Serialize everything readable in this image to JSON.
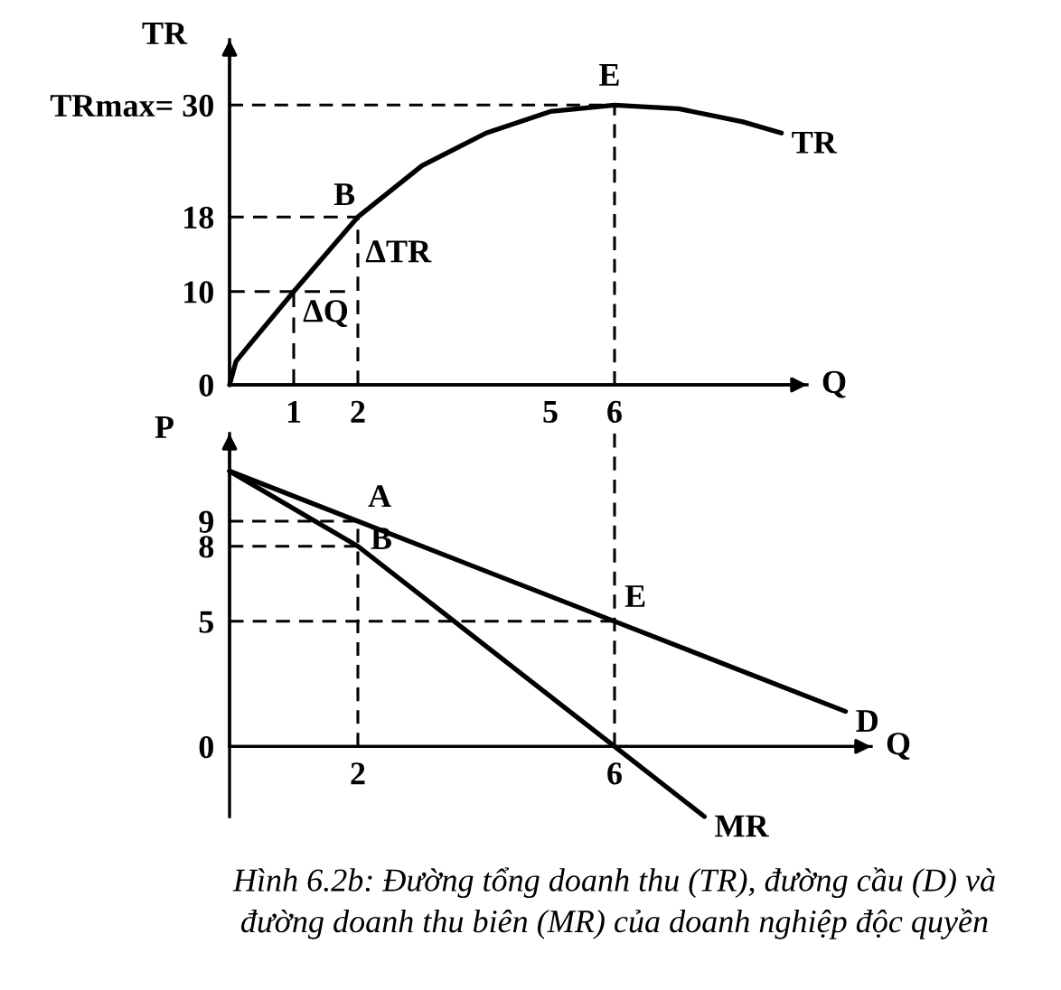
{
  "chart_data": [
    {
      "type": "line",
      "xlabel": "Q",
      "ylabel": "TR",
      "xlim": [
        0,
        9
      ],
      "ylim": [
        0,
        37
      ],
      "xticks": [
        1,
        2,
        5,
        6
      ],
      "yticks": [
        0,
        10,
        18,
        {
          "value": 30,
          "label": "TRmax= 30"
        }
      ],
      "series": [
        {
          "name": "TR",
          "color": "#000000",
          "x": [
            0,
            0.1,
            0.3,
            1,
            2,
            3,
            4,
            5,
            6,
            7,
            8,
            8.6
          ],
          "values": [
            0,
            2.5,
            4.2,
            10,
            18,
            23.5,
            27,
            29.3,
            30,
            29.6,
            28.2,
            27
          ]
        },
        {
          "color": "#000000",
          "line_style": "dashed",
          "x": [
            0,
            6,
            6
          ],
          "values": [
            30,
            30,
            0
          ]
        },
        {
          "color": "#000000",
          "line_style": "dashed",
          "x": [
            0,
            2,
            2
          ],
          "values": [
            18,
            18,
            0
          ]
        },
        {
          "color": "#000000",
          "line_style": "dashed",
          "x": [
            0,
            1.8
          ],
          "values": [
            10,
            10
          ]
        },
        {
          "color": "#000000",
          "line_style": "dashed",
          "x": [
            1,
            1
          ],
          "values": [
            10,
            0
          ]
        }
      ],
      "annotations": [
        {
          "text": "B",
          "x": 2,
          "y": 18
        },
        {
          "text": "E",
          "x": 6,
          "y": 30
        },
        {
          "text": "ΔTR",
          "x": 2,
          "y": 14
        },
        {
          "text": "ΔQ",
          "x": 1.5,
          "y": 10
        }
      ]
    },
    {
      "type": "line",
      "xlabel": "Q",
      "ylabel": "P",
      "xlim": [
        0,
        10
      ],
      "ylim": [
        -2.8,
        12.5
      ],
      "xticks": [
        2,
        6
      ],
      "yticks": [
        0,
        5,
        8,
        9
      ],
      "series": [
        {
          "name": "D",
          "color": "#000000",
          "x": [
            0,
            2,
            6,
            9.6
          ],
          "values": [
            11,
            9,
            5,
            1.4
          ]
        },
        {
          "name": "MR",
          "color": "#000000",
          "x": [
            0,
            2,
            6,
            7.4
          ],
          "values": [
            11,
            8,
            0,
            -2.8
          ]
        },
        {
          "color": "#000000",
          "line_style": "dashed",
          "x": [
            6,
            6
          ],
          "values": [
            12.5,
            0
          ]
        },
        {
          "color": "#000000",
          "line_style": "dashed",
          "x": [
            0,
            2,
            2
          ],
          "values": [
            9,
            9,
            0
          ]
        },
        {
          "color": "#000000",
          "line_style": "dashed",
          "x": [
            0,
            2
          ],
          "values": [
            8,
            8
          ]
        },
        {
          "color": "#000000",
          "line_style": "dashed",
          "x": [
            0,
            6
          ],
          "values": [
            5,
            5
          ]
        }
      ],
      "annotations": [
        {
          "text": "A",
          "x": 2,
          "y": 9
        },
        {
          "text": "B",
          "x": 2,
          "y": 8
        },
        {
          "text": "E",
          "x": 6,
          "y": 5
        },
        "Hình 6.2b: Đường tổng doanh thu (TR), đường cầu (D) và\nđường doanh thu biên (MR) của doanh nghiệp độc quyền"
      ]
    }
  ]
}
